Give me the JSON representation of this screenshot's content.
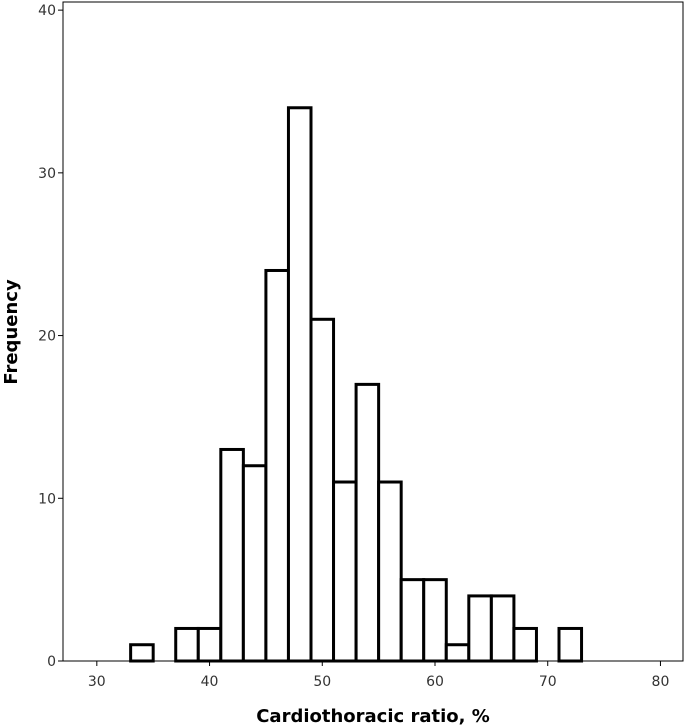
{
  "chart_data": {
    "type": "bar",
    "title": "",
    "xlabel": "Cardiothoracic ratio, %",
    "ylabel": "Frequency",
    "xlim": [
      27,
      82
    ],
    "ylim": [
      0,
      40.5
    ],
    "xticks": [
      30,
      40,
      50,
      60,
      70,
      80
    ],
    "yticks": [
      0,
      10,
      20,
      30,
      40
    ],
    "bin_width": 2,
    "bins": [
      {
        "start": 33,
        "end": 35,
        "value": 1
      },
      {
        "start": 37,
        "end": 39,
        "value": 2
      },
      {
        "start": 39,
        "end": 41,
        "value": 2
      },
      {
        "start": 41,
        "end": 43,
        "value": 13
      },
      {
        "start": 43,
        "end": 45,
        "value": 12
      },
      {
        "start": 45,
        "end": 47,
        "value": 24
      },
      {
        "start": 47,
        "end": 49,
        "value": 34
      },
      {
        "start": 49,
        "end": 51,
        "value": 21
      },
      {
        "start": 51,
        "end": 53,
        "value": 11
      },
      {
        "start": 53,
        "end": 55,
        "value": 17
      },
      {
        "start": 55,
        "end": 57,
        "value": 11
      },
      {
        "start": 57,
        "end": 59,
        "value": 5
      },
      {
        "start": 59,
        "end": 61,
        "value": 5
      },
      {
        "start": 61,
        "end": 63,
        "value": 1
      },
      {
        "start": 63,
        "end": 65,
        "value": 4
      },
      {
        "start": 65,
        "end": 67,
        "value": 4
      },
      {
        "start": 67,
        "end": 69,
        "value": 2
      },
      {
        "start": 71,
        "end": 73,
        "value": 2
      }
    ],
    "grid": false,
    "colors": {
      "bar_fill": "#ffffff",
      "bar_stroke": "#000000",
      "axis": "#000000"
    }
  }
}
